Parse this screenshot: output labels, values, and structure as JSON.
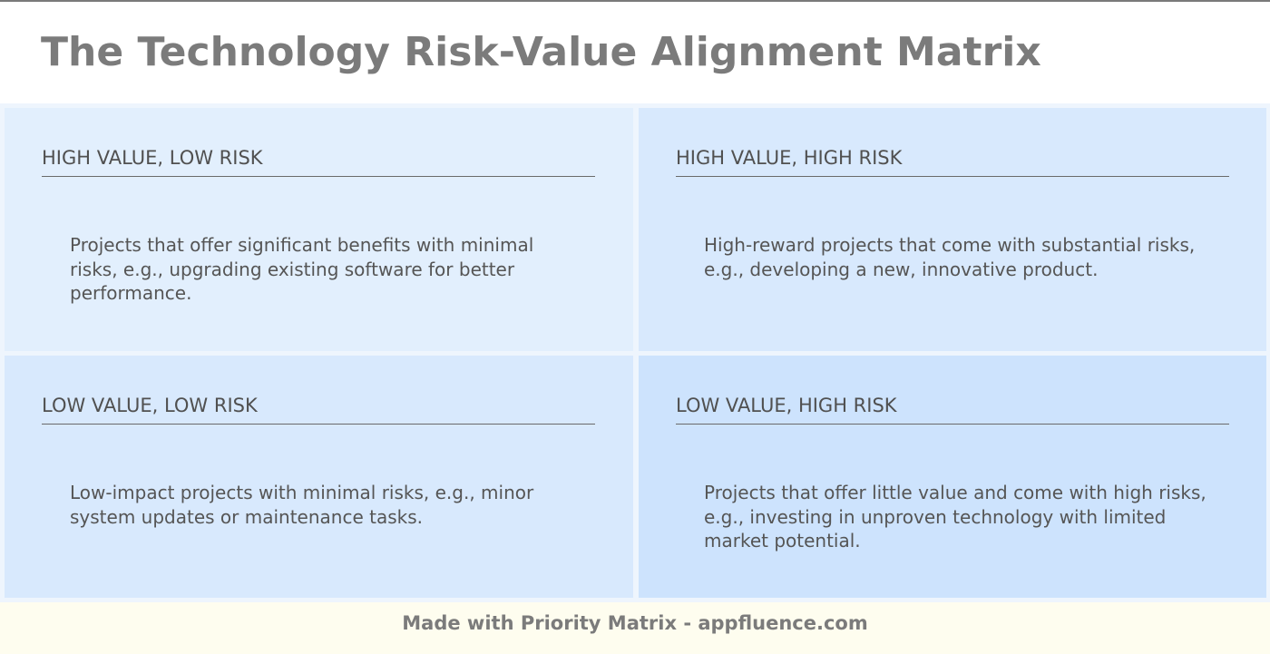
{
  "title": "The Technology Risk-Value Alignment Matrix",
  "quadrants": [
    {
      "heading": "HIGH VALUE, LOW RISK",
      "description": "Projects that offer significant benefits with minimal risks, e.g., upgrading existing software for better performance.",
      "color": "#e2effd"
    },
    {
      "heading": "HIGH VALUE, HIGH RISK",
      "description": "High-reward projects that come with substantial risks, e.g., developing a new, innovative product.",
      "color": "#d8e9fd"
    },
    {
      "heading": "LOW VALUE, LOW RISK",
      "description": "Low-impact projects with minimal risks, e.g., minor system updates or maintenance tasks.",
      "color": "#d8e9fd"
    },
    {
      "heading": "LOW VALUE, HIGH RISK",
      "description": "Projects that offer little value and come with high risks, e.g., investing in unproven technology with limited market potential.",
      "color": "#cde3fd"
    }
  ],
  "footer": "Made with Priority Matrix - appfluence.com"
}
